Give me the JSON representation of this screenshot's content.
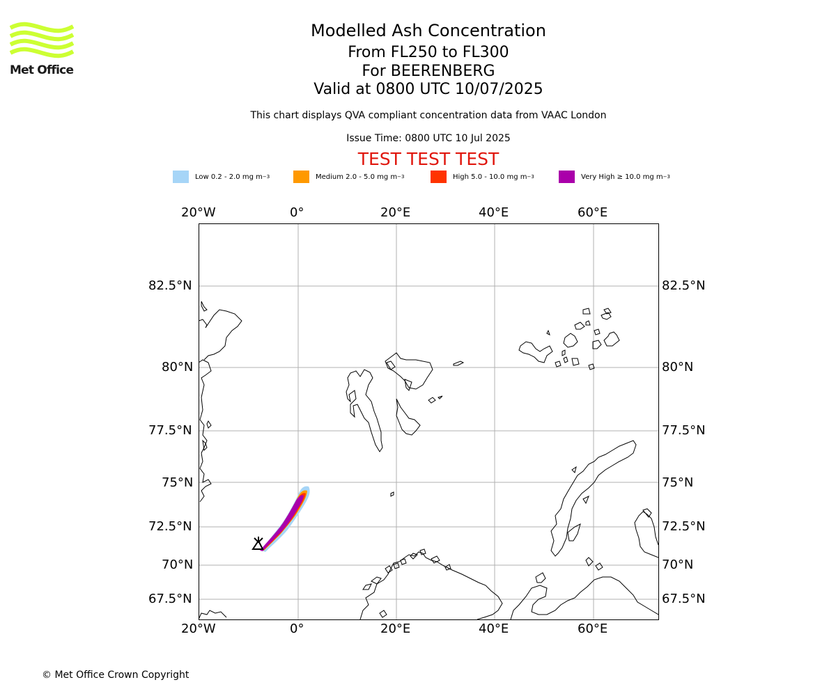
{
  "logo": {
    "text": "Met Office",
    "color": "#ccff33"
  },
  "header": {
    "title": "Modelled Ash Concentration",
    "levels": "From FL250 to FL300",
    "volcano": "For BEERENBERG",
    "valid": "Valid at 0800 UTC 10/07/2025",
    "note": "This chart displays QVA compliant concentration data from VAAC London",
    "issue": "Issue Time: 0800 UTC 10 Jul 2025",
    "test_banner": "TEST TEST TEST",
    "test_color": "#e0170e"
  },
  "legend": [
    {
      "label": "Low 0.2 - 2.0 mg m",
      "sup": "−3",
      "color": "#a6d5f7"
    },
    {
      "label": "Medium 2.0 - 5.0 mg m",
      "sup": "−3",
      "color": "#ff9900"
    },
    {
      "label": "High 5.0 - 10.0 mg m",
      "sup": "−3",
      "color": "#ff3300"
    },
    {
      "label": "Very High  ≥  10.0 mg m",
      "sup": "−3",
      "color": "#aa00aa"
    }
  ],
  "map": {
    "lon_ticks": [
      "20°W",
      "0°",
      "20°E",
      "40°E",
      "60°E"
    ],
    "lon_values": [
      -20,
      0,
      20,
      40,
      60
    ],
    "lat_ticks": [
      "82.5°N",
      "80°N",
      "77.5°N",
      "75°N",
      "72.5°N",
      "70°N",
      "67.5°N"
    ],
    "lat_values": [
      82.5,
      80,
      77.5,
      75,
      72.5,
      70,
      67.5
    ],
    "grid": true,
    "volcano_symbol": "volcano-triangle-icon",
    "plume": {
      "source": "Beerenberg, Jan Mayen",
      "direction": "north-east",
      "max_level": "Very High"
    }
  },
  "footer": {
    "copyright": "© Met Office Crown Copyright"
  }
}
